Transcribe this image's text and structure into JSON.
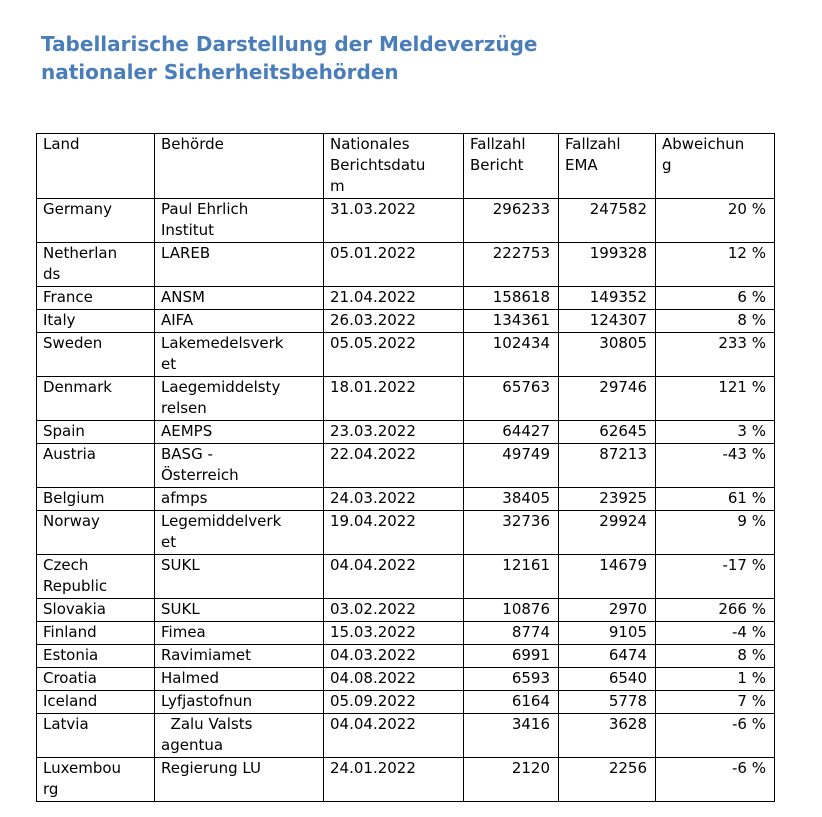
{
  "title": "Tabellarische Darstellung der Meldeverzüge nationaler Sicherheitsbehörden",
  "table": {
    "columns": [
      {
        "key": "land",
        "label": "Land"
      },
      {
        "key": "behoerde",
        "label": "Behörde"
      },
      {
        "key": "berichtsdatum",
        "label": "Nationales\nBerichtsdatu\nm"
      },
      {
        "key": "fallzahl-bericht",
        "label": "Fallzahl\nBericht"
      },
      {
        "key": "fallzahl-ema",
        "label": "Fallzahl\nEMA"
      },
      {
        "key": "abweichung",
        "label": "Abweichun\ng"
      }
    ],
    "rows": [
      {
        "land": "Germany",
        "behoerde": "Paul Ehrlich\nInstitut",
        "berichtsdatum": "31.03.2022",
        "fallzahl_bericht": "296233",
        "fallzahl_ema": "247582",
        "abweichung": "20 %"
      },
      {
        "land": "Netherlan\nds",
        "behoerde": "LAREB",
        "berichtsdatum": "05.01.2022",
        "fallzahl_bericht": "222753",
        "fallzahl_ema": "199328",
        "abweichung": "12 %"
      },
      {
        "land": "France",
        "behoerde": "ANSM",
        "berichtsdatum": "21.04.2022",
        "fallzahl_bericht": "158618",
        "fallzahl_ema": "149352",
        "abweichung": "6 %"
      },
      {
        "land": "Italy",
        "behoerde": "AIFA",
        "berichtsdatum": "26.03.2022",
        "fallzahl_bericht": "134361",
        "fallzahl_ema": "124307",
        "abweichung": "8 %"
      },
      {
        "land": "Sweden",
        "behoerde": "Lakemedelsverk\net",
        "berichtsdatum": "05.05.2022",
        "fallzahl_bericht": "102434",
        "fallzahl_ema": "30805",
        "abweichung": "233 %"
      },
      {
        "land": "Denmark",
        "behoerde": "Laegemiddelsty\nrelsen",
        "berichtsdatum": "18.01.2022",
        "fallzahl_bericht": "65763",
        "fallzahl_ema": "29746",
        "abweichung": "121 %"
      },
      {
        "land": "Spain",
        "behoerde": "AEMPS",
        "berichtsdatum": "23.03.2022",
        "fallzahl_bericht": "64427",
        "fallzahl_ema": "62645",
        "abweichung": "3 %"
      },
      {
        "land": "Austria",
        "behoerde": "BASG -\nÖsterreich",
        "berichtsdatum": "22.04.2022",
        "fallzahl_bericht": "49749",
        "fallzahl_ema": "87213",
        "abweichung": "-43 %"
      },
      {
        "land": "Belgium",
        "behoerde": "afmps",
        "berichtsdatum": "24.03.2022",
        "fallzahl_bericht": "38405",
        "fallzahl_ema": "23925",
        "abweichung": "61 %"
      },
      {
        "land": "Norway",
        "behoerde": "Legemiddelverk\net",
        "berichtsdatum": "19.04.2022",
        "fallzahl_bericht": "32736",
        "fallzahl_ema": "29924",
        "abweichung": "9 %"
      },
      {
        "land": "Czech\nRepublic",
        "behoerde": "SUKL",
        "berichtsdatum": "04.04.2022",
        "fallzahl_bericht": "12161",
        "fallzahl_ema": "14679",
        "abweichung": "-17 %"
      },
      {
        "land": "Slovakia",
        "behoerde": "SUKL",
        "berichtsdatum": "03.02.2022",
        "fallzahl_bericht": "10876",
        "fallzahl_ema": "2970",
        "abweichung": "266 %"
      },
      {
        "land": "Finland",
        "behoerde": "Fimea",
        "berichtsdatum": "15.03.2022",
        "fallzahl_bericht": "8774",
        "fallzahl_ema": "9105",
        "abweichung": "-4 %"
      },
      {
        "land": "Estonia",
        "behoerde": "Ravimiamet",
        "berichtsdatum": "04.03.2022",
        "fallzahl_bericht": "6991",
        "fallzahl_ema": "6474",
        "abweichung": "8 %"
      },
      {
        "land": "Croatia",
        "behoerde": "Halmed",
        "berichtsdatum": "04.08.2022",
        "fallzahl_bericht": "6593",
        "fallzahl_ema": "6540",
        "abweichung": "1 %"
      },
      {
        "land": "Iceland",
        "behoerde": "Lyfjastofnun",
        "berichtsdatum": "05.09.2022",
        "fallzahl_bericht": "6164",
        "fallzahl_ema": "5778",
        "abweichung": "7 %"
      },
      {
        "land": "Latvia",
        "behoerde": "  Zalu Valsts\nagentua",
        "berichtsdatum": "04.04.2022",
        "fallzahl_bericht": "3416",
        "fallzahl_ema": "3628",
        "abweichung": "-6 %"
      },
      {
        "land": "Luxembou\nrg",
        "behoerde": "Regierung LU",
        "berichtsdatum": "24.01.2022",
        "fallzahl_bericht": "2120",
        "fallzahl_ema": "2256",
        "abweichung": "-6 %"
      }
    ]
  },
  "colors": {
    "title_blue": "#4a7ebb",
    "table_border": "#000000",
    "text": "#000000",
    "background": "#ffffff"
  }
}
